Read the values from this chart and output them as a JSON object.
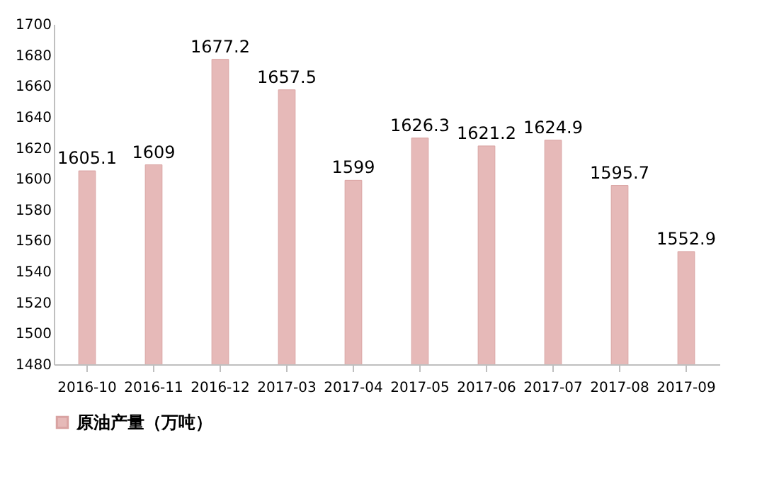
{
  "chart_data": {
    "type": "bar",
    "categories": [
      "2016-10",
      "2016-11",
      "2016-12",
      "2017-03",
      "2017-04",
      "2017-05",
      "2017-06",
      "2017-07",
      "2017-08",
      "2017-09"
    ],
    "series": [
      {
        "name": "原油产量（万吨）",
        "color": "#e6b9b8",
        "values": [
          1605.1,
          1609,
          1677.2,
          1657.5,
          1599,
          1626.3,
          1621.2,
          1624.9,
          1595.7,
          1552.9
        ]
      }
    ],
    "ylim": [
      1480,
      1700
    ],
    "yticks": [
      1480,
      1500,
      1520,
      1540,
      1560,
      1580,
      1600,
      1620,
      1640,
      1660,
      1680,
      1700
    ],
    "data_labels": true,
    "legend": "bottom left"
  }
}
